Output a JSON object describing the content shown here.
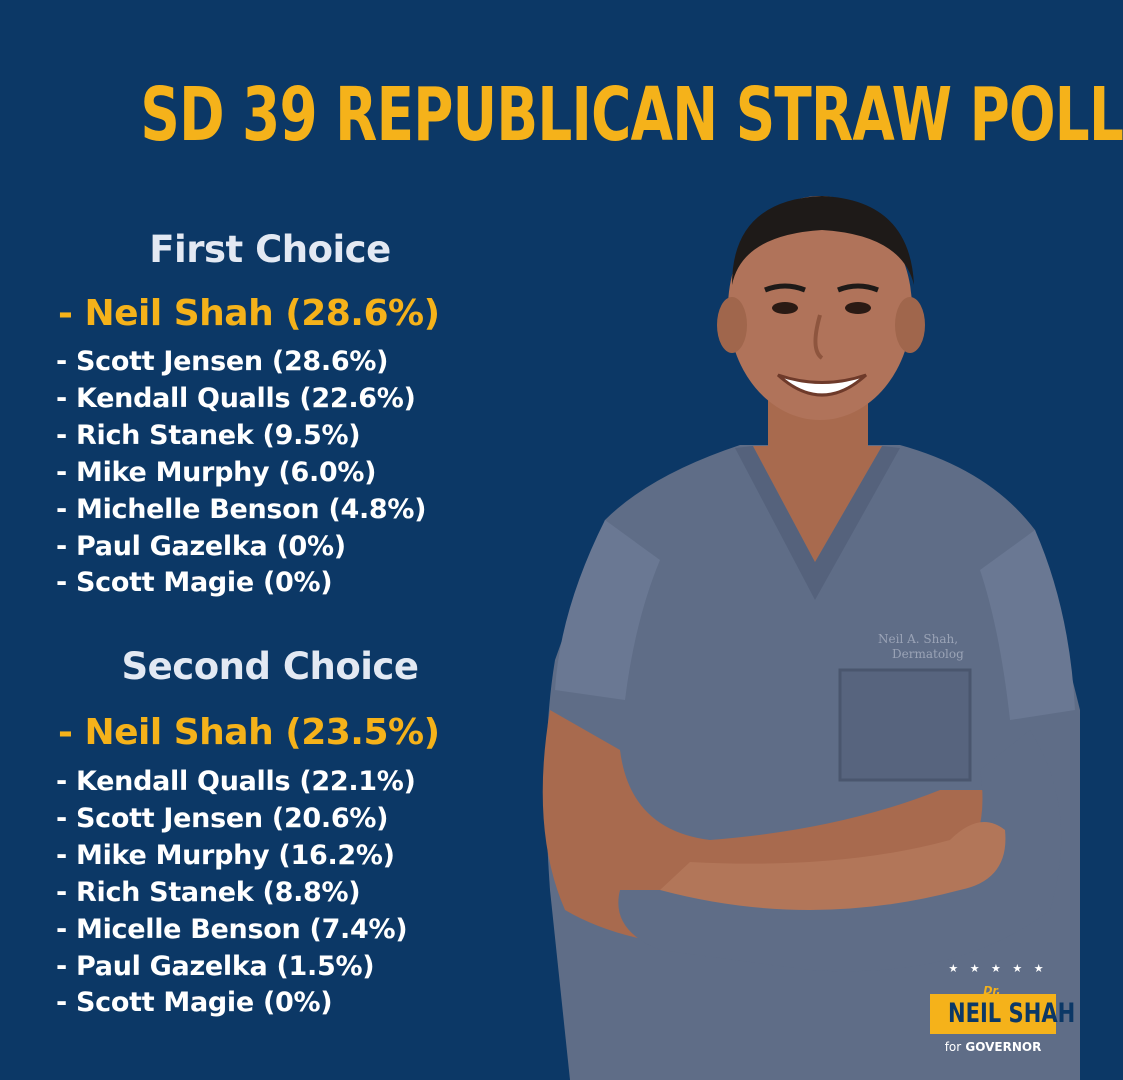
{
  "title": "SD 39 REPUBLICAN STRAW POLL",
  "first_choice": {
    "heading": "First Choice",
    "leader": "- Neil Shah (28.6%)",
    "others": [
      "- Scott Jensen (28.6%)",
      "- Kendall Qualls (22.6%)",
      "- Rich Stanek (9.5%)",
      "- Mike Murphy (6.0%)",
      "- Michelle Benson (4.8%)",
      "- Paul Gazelka (0%)",
      "- Scott Magie (0%)"
    ]
  },
  "second_choice": {
    "heading": "Second Choice",
    "leader": "- Neil Shah (23.5%)",
    "others": [
      "- Kendall Qualls (22.1%)",
      "- Scott Jensen (20.6%)",
      "- Mike Murphy (16.2%)",
      "- Rich Stanek (8.8%)",
      "- Micelle Benson (7.4%)",
      "- Paul Gazelka (1.5%)",
      "- Scott Magie (0%)"
    ]
  },
  "photo": {
    "scrub_embroidery_line1": "Neil A. Shah,",
    "scrub_embroidery_line2": "Dermatolog"
  },
  "logo": {
    "stars": "★ ★ ★ ★ ★",
    "prefix": "Dr.",
    "name": "NEIL SHAH",
    "for_word": "for",
    "office": "GOVERNOR"
  },
  "colors": {
    "background": "#0c3866",
    "accent": "#f5b21a",
    "text": "#ffffff",
    "heading": "#e3e9f3"
  }
}
